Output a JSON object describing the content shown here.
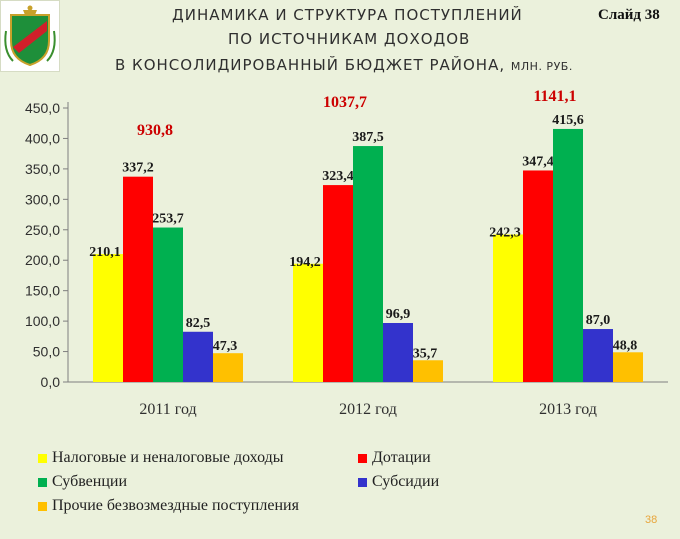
{
  "title": {
    "line1": "ДИНАМИКА И СТРУКТУРА ПОСТУПЛЕНИЙ",
    "line2": "ПО ИСТОЧНИКАМ ДОХОДОВ",
    "line3_main": "В КОНСОЛИДИРОВАННЫЙ БЮДЖЕТ РАЙОНА,",
    "line3_unit": "МЛН. РУБ."
  },
  "slide_label": "Слайд 38",
  "page_number": "38",
  "chart_data": {
    "type": "bar",
    "categories": [
      "2011 год",
      "2012 год",
      "2013 год"
    ],
    "ylim": [
      0,
      450
    ],
    "yticks": [
      "0,0",
      "50,0",
      "100,0",
      "150,0",
      "200,0",
      "250,0",
      "300,0",
      "350,0",
      "400,0",
      "450,0"
    ],
    "grid": false,
    "legend_position": "bottom",
    "series": [
      {
        "name": "Налоговые и неналоговые доходы",
        "color": "#ffff00",
        "values": [
          210.1,
          194.2,
          242.3
        ],
        "labels": [
          "210,1",
          "194,2",
          "242,3"
        ]
      },
      {
        "name": "Дотации",
        "color": "#ff0000",
        "values": [
          337.2,
          323.4,
          347.4
        ],
        "labels": [
          "337,2",
          "323,4",
          "347,4"
        ]
      },
      {
        "name": "Субвенции",
        "color": "#00b050",
        "values": [
          253.7,
          387.5,
          415.6
        ],
        "labels": [
          "253,7",
          "387,5",
          "415,6"
        ]
      },
      {
        "name": "Субсидии",
        "color": "#3333cc",
        "values": [
          82.5,
          96.9,
          87.0
        ],
        "labels": [
          "82,5",
          "96,9",
          "87,0"
        ]
      },
      {
        "name": "Прочие безвозмездные поступления",
        "color": "#ffc000",
        "values": [
          47.3,
          35.7,
          48.8
        ],
        "labels": [
          "47,3",
          "35,7",
          "48,8"
        ]
      }
    ],
    "totals": [
      "930,8",
      "1037,7",
      "1141,1"
    ]
  }
}
